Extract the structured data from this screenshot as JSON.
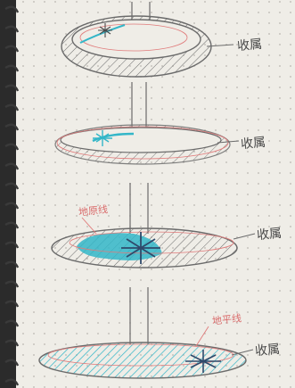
{
  "scene": {
    "paper": {
      "color": "#efede7",
      "dot_color": "#b9b6b0",
      "ring_color": "#3a3a3a"
    },
    "ink": {
      "pencil": "#6b6b6b",
      "teal": "#33b6c8",
      "red": "#e07a7a",
      "navy": "#2f4a6b"
    }
  },
  "labels": {
    "stage1": "收属",
    "stage2": "收属",
    "stage3_side": "收属",
    "stage3_red": "地原线",
    "stage4_side": "收属",
    "stage4_red": "地平线"
  }
}
